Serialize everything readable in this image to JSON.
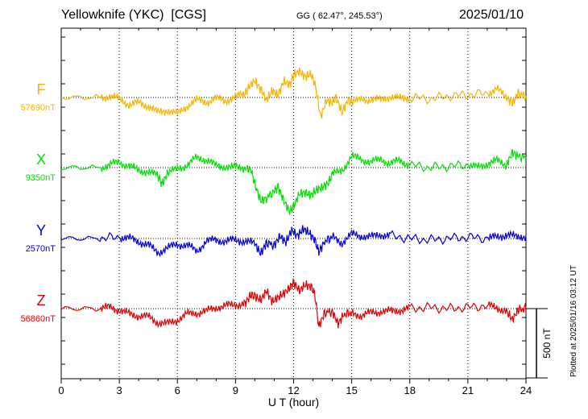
{
  "header": {
    "station": "Yellowknife (YKC)  [CGS]",
    "coords": "GG ( 62.47°, 245.53°)",
    "date": "2025/01/10"
  },
  "credit": "Plotted at 2025/01/16 03:12 UT",
  "colors": {
    "F": "#f5b400",
    "X": "#00e000",
    "Y": "#0000d8",
    "Z": "#e00000"
  },
  "chart_data": {
    "type": "line",
    "title": "Yellowknife (YKC)  [CGS]",
    "xlabel": "U T (hour)",
    "xlim": [
      0,
      24
    ],
    "xticks": [
      0,
      3,
      6,
      9,
      12,
      15,
      18,
      21,
      24
    ],
    "grid": true,
    "scale_bar_label": "500 nT",
    "scale_bar_nT": 500,
    "series": [
      {
        "name": "F",
        "baseline_label": "57690nT",
        "baseline_nT": 57690,
        "points": [
          [
            0,
            0
          ],
          [
            2,
            0
          ],
          [
            2.5,
            10
          ],
          [
            3,
            -10
          ],
          [
            3.5,
            -50
          ],
          [
            4,
            -40
          ],
          [
            4.5,
            -60
          ],
          [
            5,
            -110
          ],
          [
            5.5,
            -90
          ],
          [
            6,
            -120
          ],
          [
            6.5,
            -60
          ],
          [
            7,
            -20
          ],
          [
            7.5,
            -30
          ],
          [
            8,
            -10
          ],
          [
            8.5,
            -20
          ],
          [
            9,
            0
          ],
          [
            9.5,
            30
          ],
          [
            9.7,
            80
          ],
          [
            10,
            120
          ],
          [
            10.3,
            60
          ],
          [
            10.6,
            -20
          ],
          [
            10.9,
            50
          ],
          [
            11.2,
            20
          ],
          [
            11.5,
            120
          ],
          [
            11.8,
            90
          ],
          [
            12,
            160
          ],
          [
            12.3,
            190
          ],
          [
            12.6,
            150
          ],
          [
            12.9,
            170
          ],
          [
            13.1,
            100
          ],
          [
            13.4,
            -140
          ],
          [
            13.7,
            -20
          ],
          [
            14,
            -40
          ],
          [
            14.2,
            0
          ],
          [
            14.5,
            -110
          ],
          [
            14.8,
            -20
          ],
          [
            15,
            -30
          ],
          [
            15.5,
            -20
          ],
          [
            16,
            -10
          ],
          [
            16.5,
            -20
          ],
          [
            17,
            10
          ],
          [
            17.5,
            -10
          ],
          [
            18,
            0
          ],
          [
            19,
            -10
          ],
          [
            20,
            10
          ],
          [
            21,
            20
          ],
          [
            22,
            30
          ],
          [
            22.5,
            60
          ],
          [
            23,
            0
          ],
          [
            23.3,
            -40
          ],
          [
            23.6,
            30
          ],
          [
            24,
            10
          ]
        ]
      },
      {
        "name": "X",
        "baseline_label": "9350nT",
        "baseline_nT": 9350,
        "points": [
          [
            0,
            0
          ],
          [
            2,
            0
          ],
          [
            2.5,
            20
          ],
          [
            3,
            40
          ],
          [
            3.5,
            10
          ],
          [
            4,
            -20
          ],
          [
            4.5,
            -30
          ],
          [
            5,
            -60
          ],
          [
            5.2,
            -120
          ],
          [
            5.5,
            -40
          ],
          [
            6,
            -10
          ],
          [
            6.5,
            20
          ],
          [
            7,
            70
          ],
          [
            7.5,
            60
          ],
          [
            8,
            10
          ],
          [
            8.5,
            10
          ],
          [
            9,
            0
          ],
          [
            9.5,
            0
          ],
          [
            9.8,
            -20
          ],
          [
            10,
            -120
          ],
          [
            10.3,
            -240
          ],
          [
            10.6,
            -220
          ],
          [
            11,
            -170
          ],
          [
            11.2,
            -140
          ],
          [
            11.5,
            -240
          ],
          [
            11.8,
            -320
          ],
          [
            12,
            -280
          ],
          [
            12.3,
            -190
          ],
          [
            12.6,
            -180
          ],
          [
            12.9,
            -200
          ],
          [
            13.2,
            -160
          ],
          [
            13.5,
            -140
          ],
          [
            13.8,
            -110
          ],
          [
            14,
            -50
          ],
          [
            14.5,
            -20
          ],
          [
            15,
            80
          ],
          [
            15.5,
            60
          ],
          [
            16,
            40
          ],
          [
            16.5,
            60
          ],
          [
            17,
            30
          ],
          [
            17.5,
            50
          ],
          [
            18,
            20
          ],
          [
            19,
            0
          ],
          [
            20,
            10
          ],
          [
            21,
            20
          ],
          [
            21.5,
            0
          ],
          [
            22,
            30
          ],
          [
            22.5,
            50
          ],
          [
            23,
            20
          ],
          [
            23.3,
            110
          ],
          [
            23.6,
            80
          ],
          [
            24,
            70
          ]
        ]
      },
      {
        "name": "Y",
        "baseline_label": "2570nT",
        "baseline_nT": 2570,
        "points": [
          [
            0,
            0
          ],
          [
            2,
            0
          ],
          [
            3,
            10
          ],
          [
            3.5,
            0
          ],
          [
            4,
            -20
          ],
          [
            4.5,
            -50
          ],
          [
            5,
            -100
          ],
          [
            5.5,
            -70
          ],
          [
            6,
            -40
          ],
          [
            6.5,
            -50
          ],
          [
            7,
            -90
          ],
          [
            7.5,
            -20
          ],
          [
            8,
            -10
          ],
          [
            8.5,
            -20
          ],
          [
            9,
            -10
          ],
          [
            9.5,
            -20
          ],
          [
            10,
            -40
          ],
          [
            10.3,
            -110
          ],
          [
            10.6,
            -30
          ],
          [
            11,
            -50
          ],
          [
            11.3,
            20
          ],
          [
            11.6,
            -30
          ],
          [
            11.9,
            60
          ],
          [
            12.2,
            20
          ],
          [
            12.5,
            70
          ],
          [
            12.8,
            40
          ],
          [
            13.1,
            -10
          ],
          [
            13.3,
            -100
          ],
          [
            13.6,
            -20
          ],
          [
            14,
            10
          ],
          [
            14.5,
            -30
          ],
          [
            15,
            30
          ],
          [
            15.5,
            20
          ],
          [
            16,
            10
          ],
          [
            16.5,
            30
          ],
          [
            17,
            20
          ],
          [
            18,
            0
          ],
          [
            19,
            -10
          ],
          [
            20,
            0
          ],
          [
            21,
            10
          ],
          [
            22,
            0
          ],
          [
            22.5,
            10
          ],
          [
            23,
            30
          ],
          [
            23.5,
            10
          ],
          [
            24,
            20
          ]
        ]
      },
      {
        "name": "Z",
        "baseline_label": "56860nT",
        "baseline_nT": 56860,
        "points": [
          [
            0,
            0
          ],
          [
            2,
            0
          ],
          [
            2.5,
            10
          ],
          [
            3,
            -10
          ],
          [
            3.5,
            -40
          ],
          [
            4,
            -50
          ],
          [
            4.5,
            -60
          ],
          [
            5,
            -100
          ],
          [
            5.5,
            -110
          ],
          [
            6,
            -80
          ],
          [
            6.5,
            -40
          ],
          [
            7,
            -30
          ],
          [
            7.5,
            -20
          ],
          [
            8,
            10
          ],
          [
            8.5,
            20
          ],
          [
            9,
            30
          ],
          [
            9.5,
            40
          ],
          [
            9.8,
            100
          ],
          [
            10,
            90
          ],
          [
            10.3,
            60
          ],
          [
            10.6,
            130
          ],
          [
            10.9,
            50
          ],
          [
            11.2,
            80
          ],
          [
            11.5,
            110
          ],
          [
            11.8,
            150
          ],
          [
            12,
            190
          ],
          [
            12.3,
            130
          ],
          [
            12.6,
            170
          ],
          [
            12.9,
            160
          ],
          [
            13.1,
            100
          ],
          [
            13.3,
            -130
          ],
          [
            13.6,
            -30
          ],
          [
            14,
            -20
          ],
          [
            14.3,
            -110
          ],
          [
            14.6,
            -40
          ],
          [
            15,
            -30
          ],
          [
            15.5,
            -50
          ],
          [
            16,
            -30
          ],
          [
            16.5,
            -20
          ],
          [
            17,
            -20
          ],
          [
            17.5,
            -10
          ],
          [
            18,
            0
          ],
          [
            19,
            10
          ],
          [
            20,
            0
          ],
          [
            21,
            10
          ],
          [
            22,
            20
          ],
          [
            22.5,
            10
          ],
          [
            23,
            -20
          ],
          [
            23.3,
            -80
          ],
          [
            23.6,
            -10
          ],
          [
            24,
            0
          ]
        ]
      }
    ]
  }
}
